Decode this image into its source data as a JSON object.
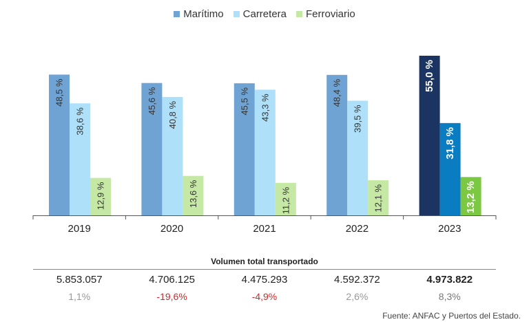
{
  "legend": {
    "items": [
      {
        "label": "Marítimo",
        "color": "#6fa3d3"
      },
      {
        "label": "Carretera",
        "color": "#aee0fa"
      },
      {
        "label": "Ferroviario",
        "color": "#c5e8a4"
      }
    ]
  },
  "chart_data": {
    "type": "bar",
    "categories": [
      "2019",
      "2020",
      "2021",
      "2022",
      "2023"
    ],
    "series": [
      {
        "name": "Marítimo",
        "values": [
          48.5,
          45.6,
          45.5,
          48.4,
          55.0
        ],
        "labels": [
          "48,5 %",
          "45,6 %",
          "45,5 %",
          "48,4 %",
          "55,0 %"
        ]
      },
      {
        "name": "Carretera",
        "values": [
          38.6,
          40.8,
          43.3,
          39.5,
          31.8
        ],
        "labels": [
          "38,6 %",
          "40,8 %",
          "43,3 %",
          "39,5 %",
          "31,8 %"
        ]
      },
      {
        "name": "Ferroviario",
        "values": [
          12.9,
          13.6,
          11.2,
          12.1,
          13.2
        ],
        "labels": [
          "12,9 %",
          "13,6 %",
          "11,2 %",
          "12,1 %",
          "13,2 %"
        ]
      }
    ],
    "ylim": [
      0,
      60
    ],
    "colors": {
      "default": [
        "#6fa3d3",
        "#aee0fa",
        "#c5e8a4"
      ],
      "highlight": [
        "#1c3461",
        "#0a7cc1",
        "#7cc842"
      ]
    },
    "highlight_category": "2023",
    "label_colors": {
      "default": "#333333",
      "highlight": "#ffffff"
    }
  },
  "totals": {
    "title": "Volumen total transportado",
    "volumes": [
      "5.853.057",
      "4.706.125",
      "4.475.293",
      "4.592.372",
      "4.973.822"
    ],
    "changes": [
      "1,1%",
      "-19,6%",
      "-4,9%",
      "2,6%",
      "8,3%"
    ],
    "change_colors": [
      "#999999",
      "#cc2a2a",
      "#cc2a2a",
      "#999999",
      "#777777"
    ]
  },
  "source": "Fuente: ANFAC y Puertos del Estado."
}
